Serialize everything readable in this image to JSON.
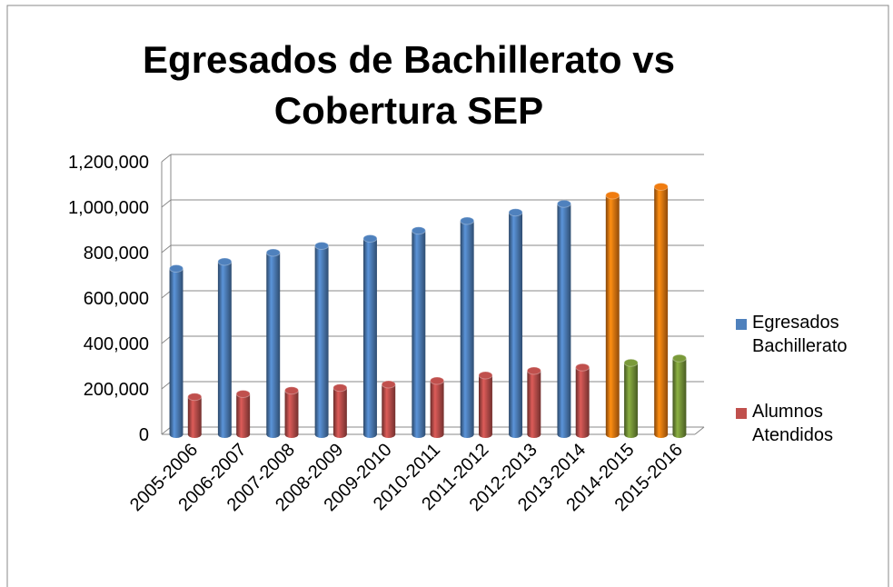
{
  "chart_data": {
    "type": "bar3d",
    "title": "Egresados de Bachillerato vs Cobertura SEP",
    "categories": [
      "2005-2006",
      "2006-2007",
      "2007-2008",
      "2008-2009",
      "2009-2010",
      "2010-2011",
      "2011-2012",
      "2012-2013",
      "2013-2014",
      "2014-2015",
      "2015-2016"
    ],
    "series": [
      {
        "name": "Egresados Bachillerato",
        "color": "#4f81bd",
        "colors": [
          "#4f81bd",
          "#4f81bd",
          "#4f81bd",
          "#4f81bd",
          "#4f81bd",
          "#4f81bd",
          "#4f81bd",
          "#4f81bd",
          "#4f81bd",
          "#f07c10",
          "#f07c10"
        ],
        "values": [
          730000,
          760000,
          800000,
          830000,
          862000,
          897000,
          940000,
          977000,
          1015000,
          1052000,
          1090000
        ]
      },
      {
        "name": "Alumnos Atendidos",
        "color": "#c0504d",
        "colors": [
          "#c0504d",
          "#c0504d",
          "#c0504d",
          "#c0504d",
          "#c0504d",
          "#c0504d",
          "#c0504d",
          "#c0504d",
          "#c0504d",
          "#7a9a3a",
          "#7a9a3a"
        ],
        "values": [
          165000,
          178000,
          193000,
          205000,
          220000,
          236000,
          260000,
          280000,
          295000,
          315000,
          335000
        ]
      }
    ],
    "ylim": [
      0,
      1200000
    ],
    "yticks": [
      0,
      {
        "value": 200000,
        "label": "200,000"
      },
      {
        "value": 400000,
        "label": "400,000"
      },
      {
        "value": 600000,
        "label": "600,000"
      },
      {
        "value": 800000,
        "label": "800,000"
      },
      {
        "value": 1000000,
        "label": "1,000,000"
      },
      {
        "value": 1200000,
        "label": "1,200,000"
      }
    ],
    "grid": true,
    "legend": "right"
  }
}
